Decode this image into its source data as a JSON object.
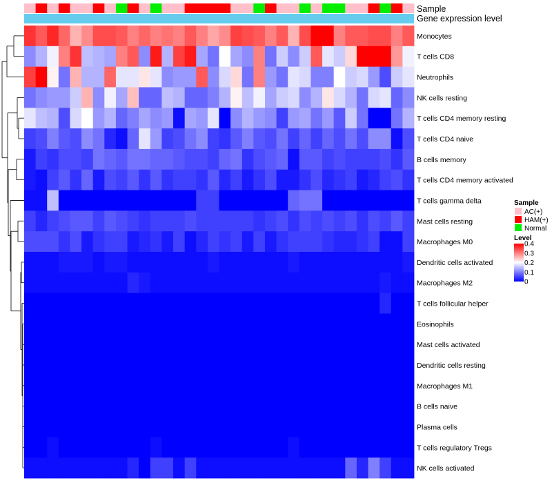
{
  "chart_data": {
    "type": "heatmap",
    "title": "",
    "annotation_labels": {
      "sample": "Sample",
      "gene_expression": "Gene expression level"
    },
    "n_columns": 34,
    "column_groups": [
      "AC",
      "HAM",
      "AC",
      "HAM",
      "AC",
      "AC",
      "HAM",
      "AC",
      "Normal",
      "HAM",
      "AC",
      "Normal",
      "AC",
      "AC",
      "HAM",
      "HAM",
      "HAM",
      "HAM",
      "AC",
      "AC",
      "Normal",
      "HAM",
      "AC",
      "AC",
      "Normal",
      "AC",
      "Normal",
      "Normal",
      "AC",
      "AC",
      "HAM",
      "Normal",
      "HAM",
      "AC"
    ],
    "row_labels": [
      "Monocytes",
      "T cells CD8",
      "Neutrophils",
      "NK cells resting",
      "T cells CD4 memory resting",
      "T cells CD4 naive",
      "B cells memory",
      "T cells CD4 memory activated",
      "T cells gamma delta",
      "Mast cells resting",
      "Macrophages M0",
      "Dendritic cells activated",
      "Macrophages M2",
      "T cells follicular helper",
      "Eosinophils",
      "Mast cells activated",
      "Dendritic cells resting",
      "Macrophages M1",
      "B cells naive",
      "Plasma cells",
      "T cells regulatory  Tregs",
      "NK cells activated"
    ],
    "values": [
      [
        0.36,
        0.33,
        0.37,
        0.32,
        0.26,
        0.29,
        0.34,
        0.34,
        0.33,
        0.3,
        0.32,
        0.3,
        0.31,
        0.3,
        0.33,
        0.3,
        0.27,
        0.29,
        0.35,
        0.34,
        0.33,
        0.3,
        0.33,
        0.26,
        0.34,
        0.4,
        0.4,
        0.3,
        0.33,
        0.33,
        0.34,
        0.34,
        0.3,
        0.33
      ],
      [
        0.11,
        0.14,
        0.19,
        0.3,
        0.36,
        0.15,
        0.14,
        0.13,
        0.3,
        0.33,
        0.11,
        0.38,
        0.14,
        0.35,
        0.38,
        0.13,
        0.09,
        0.2,
        0.13,
        0.11,
        0.3,
        0.09,
        0.16,
        0.11,
        0.16,
        0.33,
        0.18,
        0.16,
        0.23,
        0.4,
        0.4,
        0.4,
        0.28,
        0.19
      ],
      [
        0.35,
        0.4,
        0.21,
        0.09,
        0.26,
        0.14,
        0.14,
        0.32,
        0.18,
        0.18,
        0.22,
        0.18,
        0.11,
        0.12,
        0.12,
        0.33,
        0.11,
        0.17,
        0.23,
        0.09,
        0.3,
        0.12,
        0.09,
        0.18,
        0.17,
        0.1,
        0.1,
        0.2,
        0.16,
        0.17,
        0.12,
        0.06,
        0.16,
        0.18
      ],
      [
        0.09,
        0.11,
        0.12,
        0.12,
        0.16,
        0.26,
        0.11,
        0.19,
        0.13,
        0.25,
        0.08,
        0.08,
        0.15,
        0.14,
        0.08,
        0.08,
        0.1,
        0.14,
        0.21,
        0.15,
        0.19,
        0.13,
        0.16,
        0.17,
        0.11,
        0.14,
        0.22,
        0.17,
        0.14,
        0.09,
        0.17,
        0.18,
        0.08,
        0.11
      ],
      [
        0.18,
        0.15,
        0.14,
        0.06,
        0.17,
        0.2,
        0.12,
        0.14,
        0.08,
        0.1,
        0.13,
        0.11,
        0.12,
        0.01,
        0.13,
        0.12,
        0.18,
        0.0,
        0.11,
        0.14,
        0.12,
        0.11,
        0.05,
        0.12,
        0.13,
        0.09,
        0.12,
        0.07,
        0.16,
        0.09,
        0.0,
        0.0,
        0.09,
        0.14
      ],
      [
        0.05,
        0.06,
        0.1,
        0.07,
        0.06,
        0.11,
        0.09,
        0.03,
        0.01,
        0.08,
        0.18,
        0.12,
        0.05,
        0.06,
        0.09,
        0.11,
        0.05,
        0.04,
        0.07,
        0.1,
        0.07,
        0.06,
        0.09,
        0.05,
        0.08,
        0.05,
        0.08,
        0.06,
        0.09,
        0.06,
        0.11,
        0.11,
        0.01,
        0.06
      ],
      [
        0.02,
        0.05,
        0.04,
        0.06,
        0.06,
        0.05,
        0.09,
        0.08,
        0.07,
        0.09,
        0.09,
        0.08,
        0.08,
        0.07,
        0.06,
        0.06,
        0.05,
        0.08,
        0.09,
        0.04,
        0.06,
        0.07,
        0.08,
        0.01,
        0.07,
        0.07,
        0.05,
        0.06,
        0.05,
        0.05,
        0.05,
        0.06,
        0.04,
        0.07
      ],
      [
        0.02,
        0.01,
        0.05,
        0.07,
        0.04,
        0.08,
        0.02,
        0.06,
        0.05,
        0.07,
        0.04,
        0.07,
        0.04,
        0.05,
        0.05,
        0.04,
        0.07,
        0.03,
        0.05,
        0.02,
        0.04,
        0.06,
        0.02,
        0.02,
        0.04,
        0.06,
        0.03,
        0.04,
        0.05,
        0.02,
        0.03,
        0.05,
        0.06,
        0.04
      ],
      [
        0.01,
        0.01,
        0.15,
        0.0,
        0.0,
        0.0,
        0.0,
        0.0,
        0.0,
        0.0,
        0.0,
        0.0,
        0.0,
        0.0,
        0.0,
        0.05,
        0.05,
        0.0,
        0.0,
        0.0,
        0.0,
        0.0,
        0.0,
        0.08,
        0.09,
        0.09,
        0.0,
        0.0,
        0.0,
        0.0,
        0.0,
        0.0,
        0.0,
        0.0
      ],
      [
        0.05,
        0.03,
        0.05,
        0.06,
        0.07,
        0.07,
        0.05,
        0.07,
        0.06,
        0.05,
        0.04,
        0.05,
        0.05,
        0.05,
        0.06,
        0.05,
        0.05,
        0.05,
        0.05,
        0.05,
        0.04,
        0.05,
        0.06,
        0.04,
        0.06,
        0.05,
        0.06,
        0.05,
        0.06,
        0.04,
        0.06,
        0.05,
        0.07,
        0.05
      ],
      [
        0.06,
        0.06,
        0.06,
        0.04,
        0.06,
        0.02,
        0.04,
        0.05,
        0.05,
        0.02,
        0.03,
        0.04,
        0.02,
        0.05,
        0.01,
        0.03,
        0.05,
        0.04,
        0.05,
        0.02,
        0.05,
        0.02,
        0.04,
        0.05,
        0.05,
        0.05,
        0.04,
        0.03,
        0.03,
        0.04,
        0.05,
        0.01,
        0.01,
        0.05
      ],
      [
        0.01,
        0.01,
        0.01,
        0.02,
        0.02,
        0.02,
        0.01,
        0.02,
        0.02,
        0.01,
        0.01,
        0.01,
        0.01,
        0.01,
        0.01,
        0.01,
        0.02,
        0.01,
        0.01,
        0.01,
        0.01,
        0.01,
        0.01,
        0.02,
        0.01,
        0.01,
        0.01,
        0.01,
        0.01,
        0.01,
        0.01,
        0.01,
        0.01,
        0.02
      ],
      [
        0.01,
        0.01,
        0.01,
        0.01,
        0.01,
        0.01,
        0.01,
        0.01,
        0.01,
        0.03,
        0.02,
        0.01,
        0.01,
        0.01,
        0.01,
        0.01,
        0.01,
        0.01,
        0.01,
        0.01,
        0.01,
        0.01,
        0.01,
        0.01,
        0.01,
        0.01,
        0.01,
        0.01,
        0.01,
        0.01,
        0.01,
        0.02,
        0.01,
        0.01
      ],
      [
        0.0,
        0.0,
        0.0,
        0.0,
        0.0,
        0.0,
        0.0,
        0.0,
        0.0,
        0.0,
        0.0,
        0.0,
        0.0,
        0.0,
        0.0,
        0.0,
        0.0,
        0.0,
        0.0,
        0.0,
        0.0,
        0.0,
        0.0,
        0.0,
        0.0,
        0.0,
        0.0,
        0.0,
        0.0,
        0.0,
        0.0,
        0.03,
        0.0,
        0.0
      ],
      [
        0.0,
        0.0,
        0.0,
        0.0,
        0.0,
        0.0,
        0.0,
        0.0,
        0.0,
        0.0,
        0.0,
        0.0,
        0.0,
        0.0,
        0.0,
        0.0,
        0.0,
        0.0,
        0.0,
        0.0,
        0.0,
        0.0,
        0.0,
        0.0,
        0.0,
        0.0,
        0.0,
        0.0,
        0.0,
        0.0,
        0.0,
        0.0,
        0.0,
        0.0
      ],
      [
        0.0,
        0.0,
        0.0,
        0.0,
        0.0,
        0.0,
        0.0,
        0.0,
        0.0,
        0.0,
        0.0,
        0.0,
        0.0,
        0.0,
        0.0,
        0.0,
        0.0,
        0.0,
        0.0,
        0.0,
        0.0,
        0.0,
        0.0,
        0.0,
        0.0,
        0.0,
        0.0,
        0.0,
        0.0,
        0.0,
        0.0,
        0.0,
        0.0,
        0.0
      ],
      [
        0.0,
        0.0,
        0.0,
        0.0,
        0.0,
        0.0,
        0.0,
        0.0,
        0.0,
        0.0,
        0.0,
        0.0,
        0.0,
        0.0,
        0.0,
        0.0,
        0.0,
        0.0,
        0.0,
        0.0,
        0.0,
        0.0,
        0.0,
        0.0,
        0.0,
        0.0,
        0.0,
        0.0,
        0.0,
        0.0,
        0.0,
        0.0,
        0.0,
        0.0
      ],
      [
        0.0,
        0.0,
        0.0,
        0.0,
        0.0,
        0.0,
        0.0,
        0.0,
        0.0,
        0.0,
        0.0,
        0.0,
        0.0,
        0.0,
        0.0,
        0.0,
        0.0,
        0.0,
        0.0,
        0.0,
        0.0,
        0.0,
        0.0,
        0.0,
        0.0,
        0.0,
        0.0,
        0.0,
        0.0,
        0.0,
        0.0,
        0.0,
        0.0,
        0.0
      ],
      [
        0.0,
        0.0,
        0.0,
        0.0,
        0.0,
        0.0,
        0.0,
        0.0,
        0.0,
        0.0,
        0.0,
        0.0,
        0.0,
        0.0,
        0.0,
        0.0,
        0.0,
        0.0,
        0.0,
        0.0,
        0.0,
        0.0,
        0.0,
        0.0,
        0.0,
        0.0,
        0.0,
        0.0,
        0.0,
        0.0,
        0.0,
        0.0,
        0.0,
        0.0
      ],
      [
        0.0,
        0.0,
        0.0,
        0.0,
        0.0,
        0.0,
        0.0,
        0.0,
        0.0,
        0.0,
        0.0,
        0.0,
        0.0,
        0.0,
        0.0,
        0.0,
        0.0,
        0.0,
        0.0,
        0.0,
        0.0,
        0.0,
        0.0,
        0.0,
        0.0,
        0.0,
        0.0,
        0.0,
        0.0,
        0.0,
        0.0,
        0.0,
        0.0,
        0.0
      ],
      [
        0.0,
        0.0,
        0.01,
        0.0,
        0.0,
        0.0,
        0.0,
        0.0,
        0.0,
        0.0,
        0.0,
        0.01,
        0.0,
        0.0,
        0.0,
        0.0,
        0.0,
        0.0,
        0.0,
        0.0,
        0.0,
        0.0,
        0.0,
        0.01,
        0.0,
        0.0,
        0.0,
        0.0,
        0.0,
        0.0,
        0.0,
        0.0,
        0.0,
        0.0
      ],
      [
        0.01,
        0.01,
        0.01,
        0.01,
        0.01,
        0.01,
        0.01,
        0.01,
        0.01,
        0.03,
        0.0,
        0.05,
        0.05,
        0.01,
        0.05,
        0.01,
        0.01,
        0.01,
        0.01,
        0.01,
        0.01,
        0.01,
        0.01,
        0.01,
        0.01,
        0.01,
        0.01,
        0.01,
        0.08,
        0.03,
        0.1,
        0.05,
        0.01,
        0.01
      ]
    ],
    "color_scale": {
      "stops": [
        0,
        0.2,
        0.4
      ],
      "colors": [
        "#0000ff",
        "#ffffff",
        "#ff0000"
      ]
    },
    "group_colors": {
      "AC": "#ffc0cb",
      "HAM": "#ff0000",
      "Normal": "#00ee00"
    },
    "gene_expression_color": "#66ccee",
    "legend": {
      "sample_title": "Sample",
      "sample_items": [
        {
          "key": "AC",
          "label": "AC(+)"
        },
        {
          "key": "HAM",
          "label": "HAM(+)"
        },
        {
          "key": "Normal",
          "label": "Normal"
        }
      ],
      "level_title": "Level",
      "level_ticks": [
        {
          "value": 0.4,
          "label": "0.4"
        },
        {
          "value": 0.3,
          "label": "0.3"
        },
        {
          "value": 0.2,
          "label": "0.2"
        },
        {
          "value": 0.1,
          "label": "0.1"
        },
        {
          "value": 0,
          "label": "0"
        }
      ]
    },
    "row_dendrogram": true
  }
}
